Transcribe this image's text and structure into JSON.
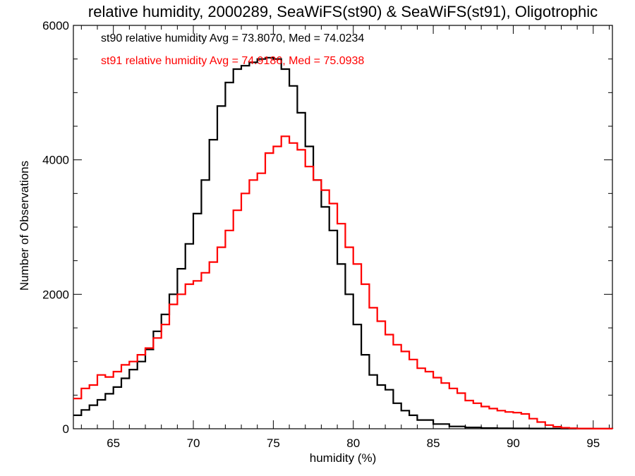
{
  "chart_data": {
    "type": "line",
    "step": true,
    "title": "relative humidity, 2000289, SeaWiFS(st90) & SeaWiFS(st91), Oligotrophic",
    "xlabel": "humidity (%)",
    "ylabel": "Number of Observations",
    "xlim": [
      62.5,
      96.2
    ],
    "ylim": [
      0,
      6000
    ],
    "xticks": [
      "65",
      "70",
      "75",
      "80",
      "85",
      "90",
      "95"
    ],
    "yticks": [
      "0",
      "2000",
      "4000",
      "6000"
    ],
    "grid": false,
    "legend_position": "top-left",
    "series": [
      {
        "name": "st90",
        "legend": "st90 relative humidity Avg = 73.8070, Med = 74.0234",
        "color": "#000000",
        "x": [
          62.5,
          63,
          63.5,
          64,
          64.5,
          65,
          65.5,
          66,
          66.5,
          67,
          67.5,
          68,
          68.5,
          69,
          69.5,
          70,
          70.5,
          71,
          71.5,
          72,
          72.5,
          73,
          73.5,
          74,
          74.5,
          75,
          75.5,
          76,
          76.5,
          77,
          77.5,
          78,
          78.5,
          79,
          79.5,
          80,
          80.5,
          81,
          81.5,
          82,
          82.5,
          83,
          83.5,
          84,
          85,
          86,
          87,
          88,
          89,
          90,
          91,
          92,
          93,
          95,
          96.2
        ],
        "y": [
          200,
          280,
          350,
          430,
          520,
          620,
          750,
          880,
          1000,
          1180,
          1450,
          1700,
          2000,
          2380,
          2750,
          3200,
          3700,
          4300,
          4800,
          5150,
          5350,
          5400,
          5450,
          5500,
          5520,
          5500,
          5350,
          5100,
          4700,
          4200,
          3700,
          3300,
          2950,
          2450,
          2000,
          1550,
          1100,
          800,
          650,
          580,
          380,
          270,
          200,
          130,
          70,
          35,
          20,
          10,
          6,
          5,
          4,
          3,
          2,
          1,
          0
        ]
      },
      {
        "name": "st91",
        "legend": "st91 relative humidity Avg = 74.9186, Med = 75.0938",
        "color": "#ff0000",
        "x": [
          62.5,
          63,
          63.5,
          64,
          64.5,
          65,
          65.5,
          66,
          66.5,
          67,
          67.5,
          68,
          68.5,
          69,
          69.5,
          70,
          70.5,
          71,
          71.5,
          72,
          72.5,
          73,
          73.5,
          74,
          74.5,
          75,
          75.5,
          76,
          76.5,
          77,
          77.5,
          78,
          78.5,
          79,
          79.5,
          80,
          80.5,
          81,
          81.5,
          82,
          82.5,
          83,
          83.5,
          84,
          84.5,
          85,
          85.5,
          86,
          86.5,
          87,
          87.5,
          88,
          88.5,
          89,
          89.5,
          90,
          90.5,
          91,
          91.5,
          92,
          92.5,
          93,
          93.5,
          94,
          95,
          96.2
        ],
        "y": [
          450,
          600,
          650,
          800,
          770,
          850,
          950,
          1000,
          1100,
          1200,
          1350,
          1550,
          1850,
          2000,
          2150,
          2200,
          2320,
          2480,
          2700,
          2950,
          3250,
          3500,
          3700,
          3800,
          4100,
          4200,
          4350,
          4250,
          4150,
          3900,
          3700,
          3550,
          3350,
          3050,
          2700,
          2450,
          2150,
          1800,
          1600,
          1400,
          1250,
          1150,
          1030,
          900,
          850,
          760,
          680,
          600,
          530,
          420,
          380,
          330,
          300,
          270,
          250,
          240,
          220,
          150,
          100,
          55,
          30,
          15,
          8,
          4,
          1,
          0
        ]
      }
    ]
  }
}
